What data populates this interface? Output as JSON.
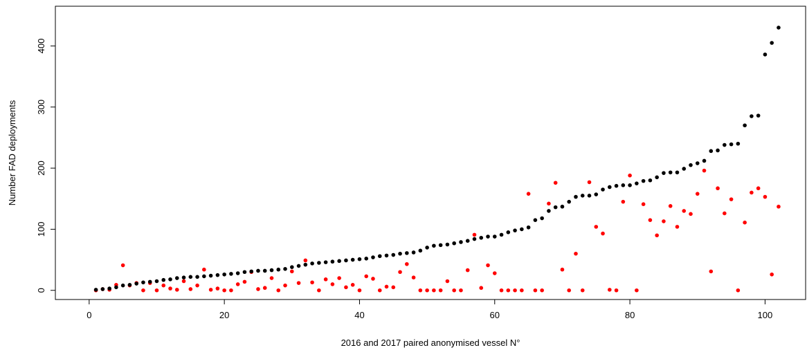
{
  "chart_data": {
    "type": "scatter",
    "title": "",
    "xlabel": "2016 and 2017 paired anonymised vessel N°",
    "ylabel": "Number FAD deployments",
    "xlim": [
      -5,
      106
    ],
    "ylim": [
      -15,
      465
    ],
    "xticks": [
      0,
      20,
      40,
      60,
      80,
      100
    ],
    "yticks": [
      0,
      100,
      200,
      300,
      400
    ],
    "grid": false,
    "legend": "none",
    "series": [
      {
        "color": "#000000",
        "x": [
          1,
          2,
          3,
          4,
          5,
          6,
          7,
          8,
          9,
          10,
          11,
          12,
          13,
          14,
          15,
          16,
          17,
          18,
          19,
          20,
          21,
          22,
          23,
          24,
          25,
          26,
          27,
          28,
          29,
          30,
          31,
          32,
          33,
          34,
          35,
          36,
          37,
          38,
          39,
          40,
          41,
          42,
          43,
          44,
          45,
          46,
          47,
          48,
          49,
          50,
          51,
          52,
          53,
          54,
          55,
          56,
          57,
          58,
          59,
          60,
          61,
          62,
          63,
          64,
          65,
          66,
          67,
          68,
          69,
          70,
          71,
          72,
          73,
          74,
          75,
          76,
          77,
          78,
          79,
          80,
          81,
          82,
          83,
          84,
          85,
          86,
          87,
          88,
          89,
          90,
          91,
          92,
          93,
          94,
          95,
          96,
          97,
          98,
          99,
          100,
          101,
          102
        ],
        "y": [
          1,
          2,
          3,
          5,
          8,
          9,
          11,
          13,
          14,
          15,
          17,
          18,
          20,
          21,
          22,
          22,
          23,
          24,
          25,
          26,
          27,
          28,
          30,
          31,
          32,
          32,
          33,
          34,
          35,
          38,
          40,
          42,
          44,
          45,
          46,
          47,
          48,
          49,
          50,
          51,
          52,
          54,
          56,
          57,
          58,
          60,
          61,
          62,
          65,
          70,
          73,
          74,
          75,
          77,
          79,
          81,
          84,
          86,
          88,
          88,
          91,
          95,
          98,
          100,
          103,
          115,
          118,
          130,
          136,
          137,
          145,
          153,
          155,
          155,
          157,
          165,
          169,
          171,
          172,
          172,
          175,
          179,
          180,
          185,
          192,
          193,
          193,
          199,
          205,
          208,
          212,
          228,
          229,
          238,
          239,
          240,
          270,
          285,
          286,
          386,
          405,
          430
        ]
      },
      {
        "color": "#ff0000",
        "x": [
          1,
          2,
          3,
          4,
          5,
          6,
          7,
          8,
          9,
          10,
          11,
          12,
          13,
          14,
          15,
          16,
          17,
          18,
          19,
          20,
          21,
          22,
          23,
          24,
          25,
          26,
          27,
          28,
          29,
          30,
          31,
          32,
          33,
          34,
          35,
          36,
          37,
          38,
          39,
          40,
          41,
          42,
          43,
          44,
          45,
          46,
          47,
          48,
          49,
          50,
          51,
          52,
          53,
          54,
          55,
          56,
          57,
          58,
          59,
          60,
          61,
          62,
          63,
          64,
          65,
          66,
          67,
          68,
          69,
          70,
          71,
          72,
          73,
          74,
          75,
          76,
          77,
          78,
          79,
          80,
          81,
          82,
          83,
          84,
          85,
          86,
          87,
          88,
          89,
          90,
          91,
          92,
          93,
          94,
          95,
          96,
          97,
          98,
          99,
          100,
          101,
          102
        ],
        "y": [
          0,
          2,
          1,
          9,
          41,
          8,
          12,
          0,
          12,
          0,
          8,
          3,
          1,
          15,
          2,
          8,
          34,
          1,
          3,
          0,
          0,
          10,
          14,
          30,
          2,
          4,
          20,
          0,
          8,
          31,
          12,
          49,
          13,
          0,
          18,
          10,
          20,
          5,
          9,
          0,
          23,
          19,
          0,
          6,
          5,
          30,
          43,
          21,
          0,
          0,
          0,
          0,
          15,
          0,
          0,
          33,
          91,
          4,
          41,
          28,
          0,
          0,
          0,
          0,
          158,
          0,
          0,
          142,
          176,
          34,
          0,
          60,
          0,
          177,
          104,
          93,
          1,
          0,
          145,
          188,
          0,
          141,
          115,
          90,
          113,
          138,
          104,
          130,
          125,
          158,
          196,
          31,
          167,
          126,
          149,
          0,
          111,
          160,
          167,
          153,
          26,
          137
        ]
      }
    ]
  }
}
